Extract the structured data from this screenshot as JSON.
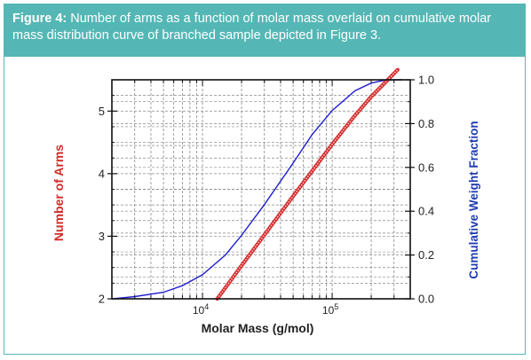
{
  "caption": {
    "label": "Figure 4:",
    "text": " Number of arms as a function of molar mass overlaid on cumulative molar mass distribution curve of branched sample depicted in Figure 3."
  },
  "colors": {
    "caption_background": "#54b7b5",
    "arms_series": "#d42a2a",
    "cumulative_series": "#1f1fd0",
    "grid": "#888888"
  },
  "chart_data": {
    "type": "line",
    "xlabel": "Molar Mass (g/mol)",
    "x_scale": "log",
    "xlim": [
      2000,
      400000
    ],
    "x_ticks": [
      {
        "value": 10000,
        "base": "10",
        "exp": "4"
      },
      {
        "value": 100000,
        "base": "10",
        "exp": "5"
      }
    ],
    "y_left": {
      "label": "Number of Arms",
      "ylim": [
        2,
        5.5
      ],
      "ticks": [
        "2",
        "3",
        "4",
        "5"
      ],
      "color": "#d42a2a"
    },
    "y_right": {
      "label": "Cumulative Weight Fraction",
      "ylim": [
        0,
        1.0
      ],
      "ticks": [
        "0.0",
        "0.2",
        "0.4",
        "0.6",
        "0.8",
        "1.0"
      ],
      "color": "#1f3cb0"
    },
    "grid": true,
    "series": [
      {
        "axis": "left",
        "x": [
          13000,
          20000,
          30000,
          50000,
          80000,
          100000,
          150000,
          200000,
          300000,
          320000
        ],
        "y": [
          2.0,
          2.53,
          3.02,
          3.64,
          4.2,
          4.47,
          4.93,
          5.23,
          5.6,
          5.66
        ]
      },
      {
        "axis": "right",
        "x": [
          2000,
          3000,
          5000,
          7000,
          10000,
          15000,
          20000,
          30000,
          50000,
          70000,
          100000,
          150000,
          200000,
          250000,
          300000,
          350000
        ],
        "y": [
          0.0,
          0.01,
          0.03,
          0.06,
          0.11,
          0.2,
          0.29,
          0.43,
          0.62,
          0.75,
          0.86,
          0.95,
          0.985,
          0.997,
          1.0,
          1.0
        ]
      }
    ]
  }
}
